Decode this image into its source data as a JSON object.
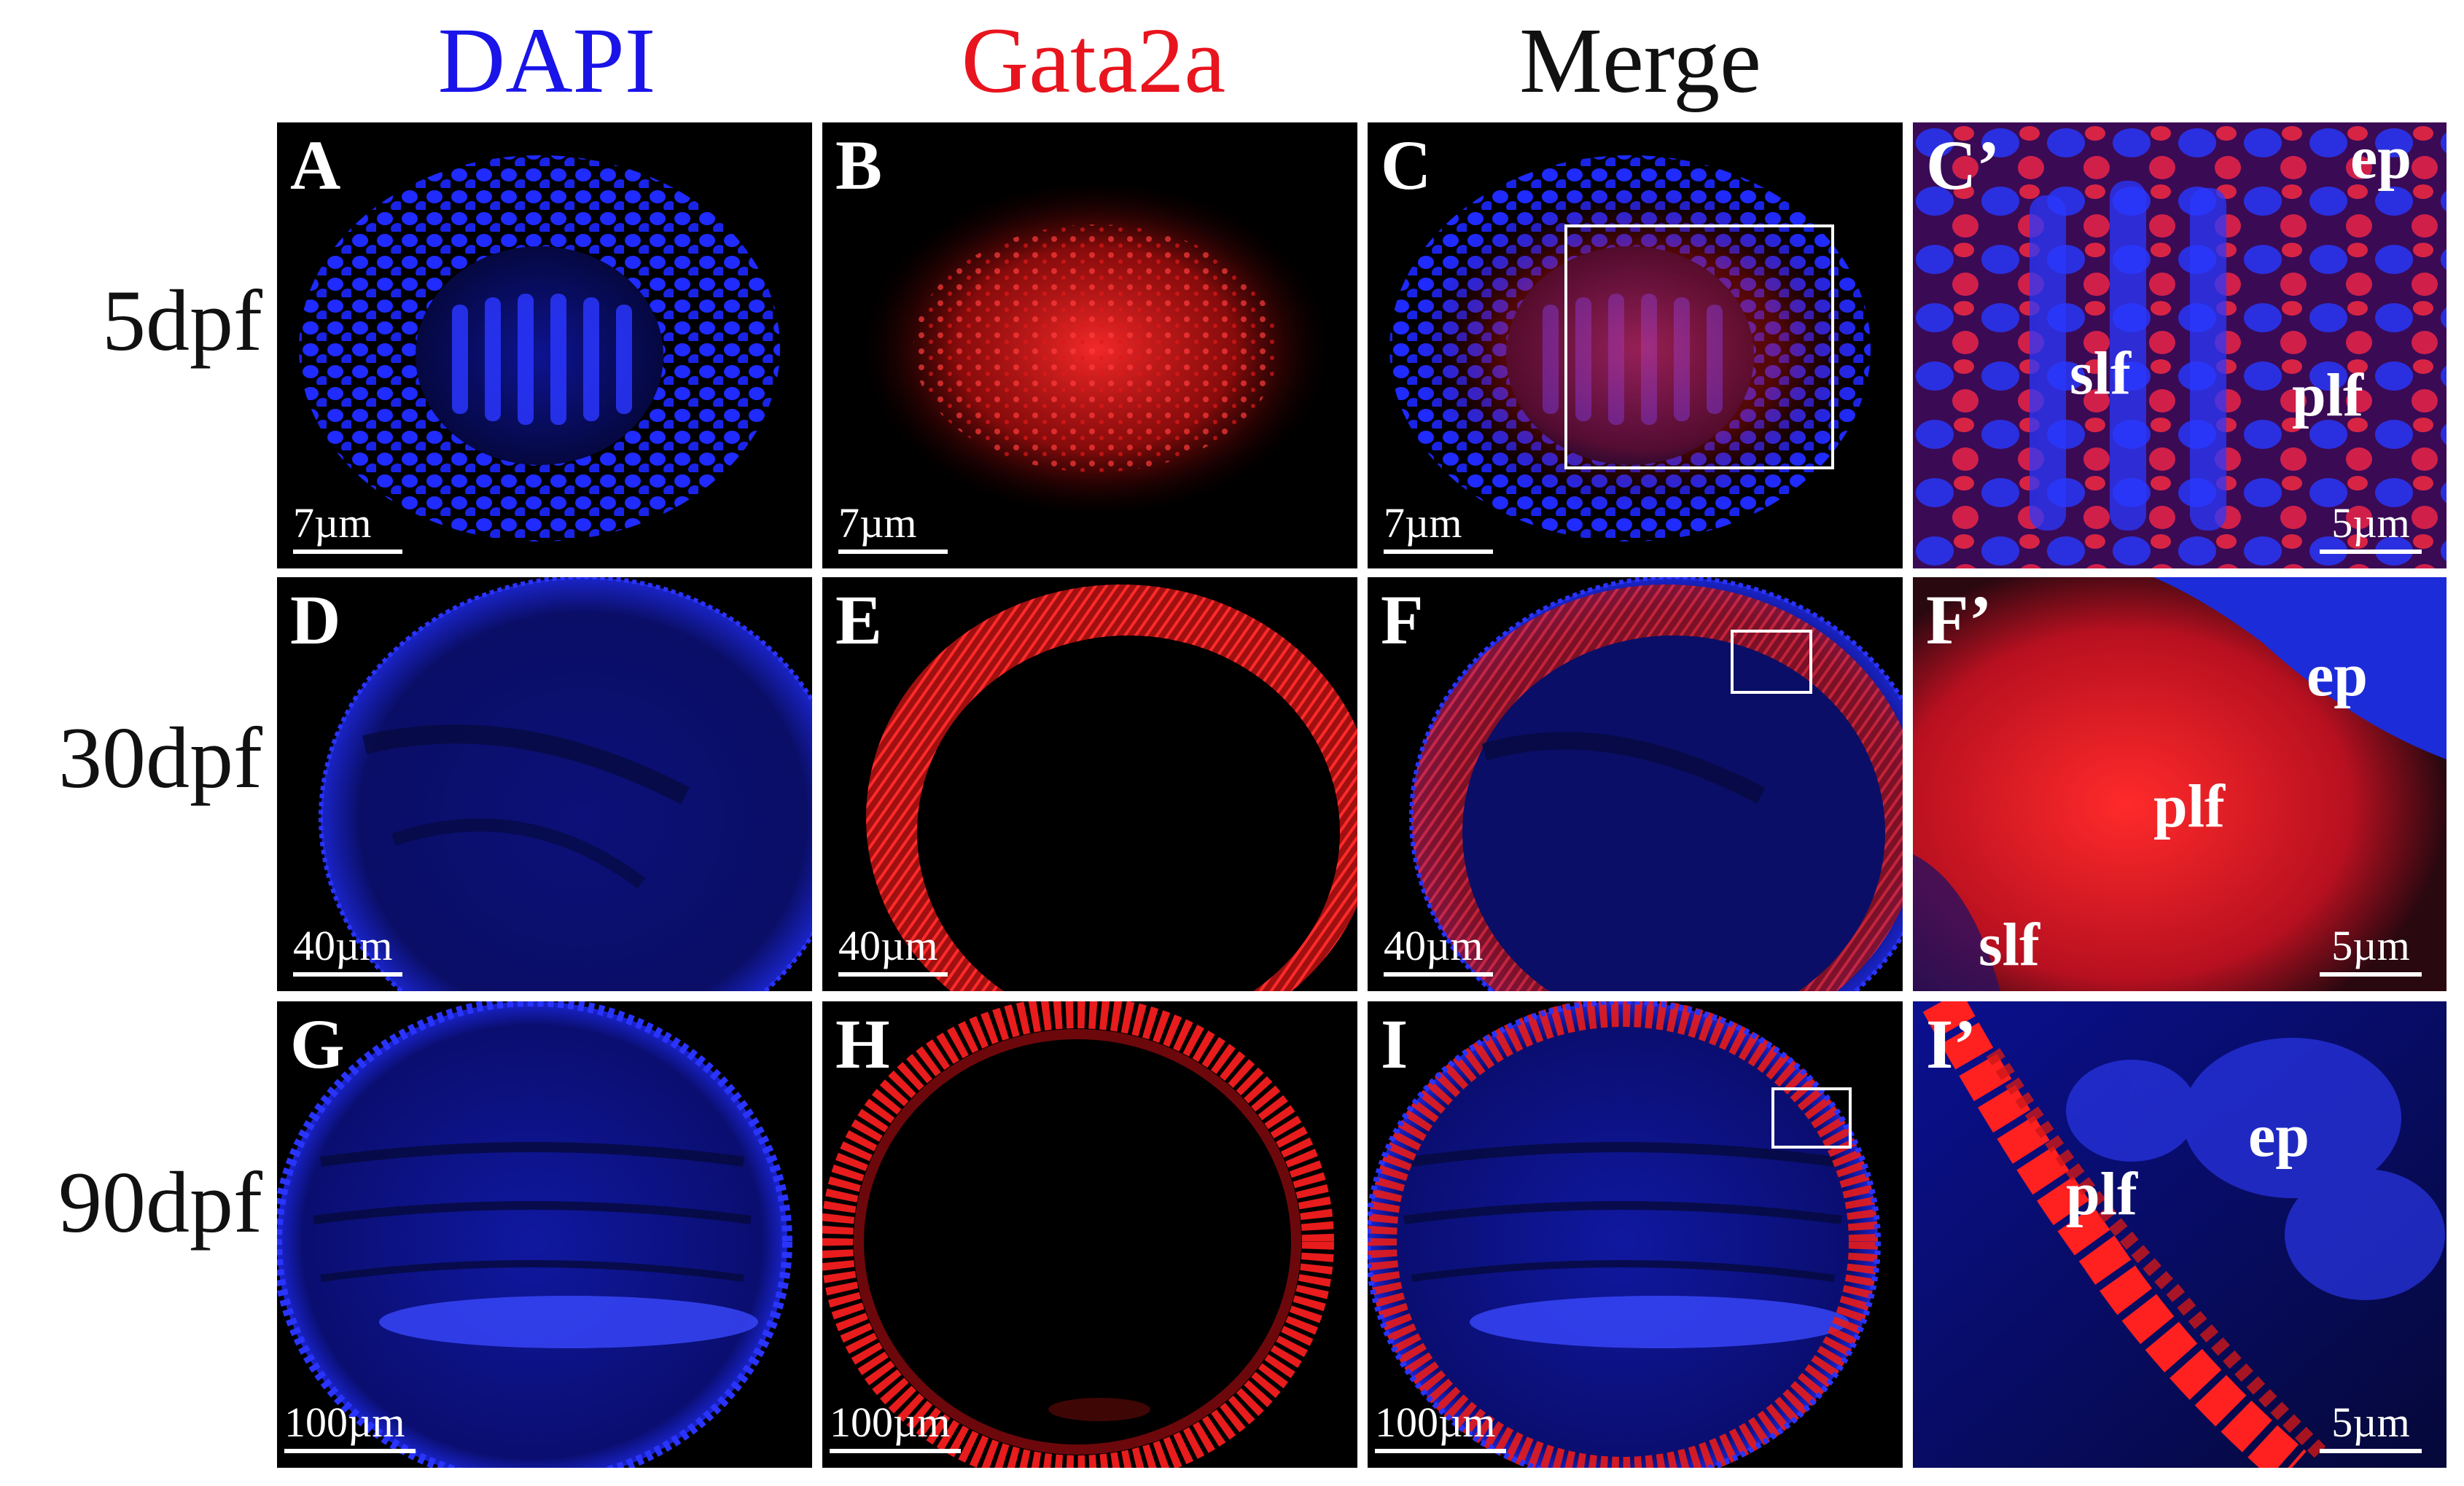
{
  "columns": [
    {
      "label": "DAPI",
      "color": "#1a14e8"
    },
    {
      "label": "Gata2a",
      "color": "#e8141e"
    },
    {
      "label": "Merge",
      "color": "#111111"
    }
  ],
  "rows": [
    {
      "label": "5dpf",
      "panels": [
        {
          "letter": "A",
          "scale": "7µm"
        },
        {
          "letter": "B",
          "scale": "7µm"
        },
        {
          "letter": "C",
          "scale": "7µm"
        },
        {
          "letter": "C’",
          "scale": "5µm",
          "annotations": [
            "ep",
            "slf",
            "plf"
          ]
        }
      ]
    },
    {
      "label": "30dpf",
      "panels": [
        {
          "letter": "D",
          "scale": "40µm"
        },
        {
          "letter": "E",
          "scale": "40µm"
        },
        {
          "letter": "F",
          "scale": "40µm"
        },
        {
          "letter": "F’",
          "scale": "5µm",
          "annotations": [
            "ep",
            "plf",
            "slf"
          ]
        }
      ]
    },
    {
      "label": "90dpf",
      "panels": [
        {
          "letter": "G",
          "scale": "100µm"
        },
        {
          "letter": "H",
          "scale": "100µm"
        },
        {
          "letter": "I",
          "scale": "100µm"
        },
        {
          "letter": "I’",
          "scale": "5µm",
          "annotations": [
            "ep",
            "plf"
          ]
        }
      ]
    }
  ],
  "stain_colors": {
    "dapi": "#1f2bff",
    "gata2a": "#ff2020",
    "background": "#000000"
  }
}
